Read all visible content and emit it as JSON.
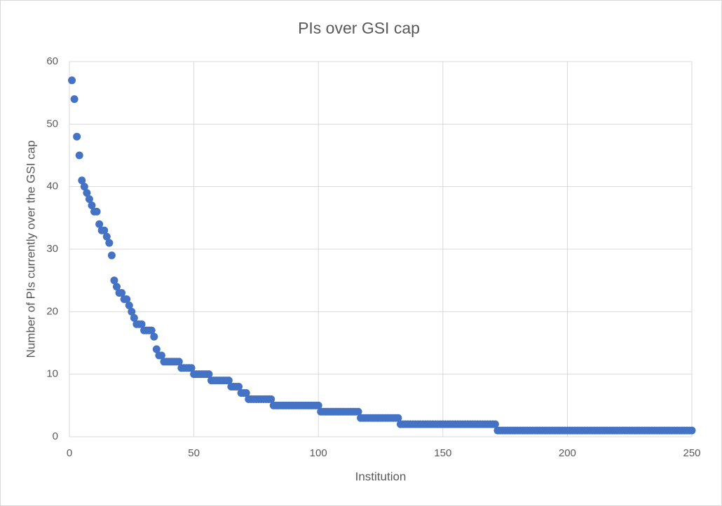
{
  "chart_data": {
    "type": "scatter",
    "title": "PIs over GSI cap",
    "x_label": "Institution",
    "y_label": "Number of PIs currently over the GSI cap",
    "xlim": [
      0,
      250
    ],
    "xticks": [
      0,
      50,
      100,
      150,
      200,
      250
    ],
    "ylim": [
      0,
      60
    ],
    "yticks": [
      0,
      10,
      20,
      30,
      40,
      50,
      60
    ],
    "grid": true,
    "series": [
      {
        "color": "#4472c4",
        "x": [
          1,
          2,
          3,
          4,
          5,
          6,
          7,
          8,
          9,
          10,
          11,
          12,
          13,
          14,
          15,
          16,
          17,
          18,
          19,
          20,
          21,
          22,
          23,
          24,
          25,
          26,
          27,
          28,
          29,
          30,
          31,
          32,
          33,
          34,
          35,
          36,
          37,
          38,
          39,
          40,
          41,
          42,
          43,
          44,
          45,
          46,
          47,
          48,
          49,
          50,
          51,
          52,
          53,
          54,
          55,
          56,
          57,
          58,
          59,
          60,
          61,
          62,
          63,
          64,
          65,
          66,
          67,
          68,
          69,
          70,
          71,
          72,
          73,
          74,
          75,
          76,
          77,
          78,
          79,
          80,
          81,
          82,
          83,
          84,
          85,
          86,
          87,
          88,
          89,
          90,
          91,
          92,
          93,
          94,
          95,
          96,
          97,
          98,
          99,
          100,
          101,
          102,
          103,
          104,
          105,
          106,
          107,
          108,
          109,
          110,
          111,
          112,
          113,
          114,
          115,
          116,
          117,
          118,
          119,
          120,
          121,
          122,
          123,
          124,
          125,
          126,
          127,
          128,
          129,
          130,
          131,
          132,
          133,
          134,
          135,
          136,
          137,
          138,
          139,
          140,
          141,
          142,
          143,
          144,
          145,
          146,
          147,
          148,
          149,
          150,
          151,
          152,
          153,
          154,
          155,
          156,
          157,
          158,
          159,
          160,
          161,
          162,
          163,
          164,
          165,
          166,
          167,
          168,
          169,
          170,
          171,
          172,
          173,
          174,
          175,
          176,
          177,
          178,
          179,
          180,
          181,
          182,
          183,
          184,
          185,
          186,
          187,
          188,
          189,
          190,
          191,
          192,
          193,
          194,
          195,
          196,
          197,
          198,
          199,
          200,
          201,
          202,
          203,
          204,
          205,
          206,
          207,
          208,
          209,
          210,
          211,
          212,
          213,
          214,
          215,
          216,
          217,
          218,
          219,
          220,
          221,
          222,
          223,
          224,
          225,
          226,
          227,
          228,
          229,
          230,
          231,
          232,
          233,
          234,
          235,
          236,
          237,
          238,
          239,
          240,
          241,
          242,
          243,
          244,
          245,
          246,
          247,
          248,
          249,
          250
        ],
        "values": [
          57,
          54,
          48,
          45,
          41,
          40,
          39,
          38,
          37,
          36,
          36,
          34,
          33,
          33,
          32,
          31,
          29,
          25,
          24,
          23,
          23,
          22,
          22,
          21,
          20,
          19,
          18,
          18,
          18,
          17,
          17,
          17,
          17,
          16,
          14,
          13,
          13,
          12,
          12,
          12,
          12,
          12,
          12,
          12,
          11,
          11,
          11,
          11,
          11,
          10,
          10,
          10,
          10,
          10,
          10,
          10,
          9,
          9,
          9,
          9,
          9,
          9,
          9,
          9,
          8,
          8,
          8,
          8,
          7,
          7,
          7,
          6,
          6,
          6,
          6,
          6,
          6,
          6,
          6,
          6,
          6,
          5,
          5,
          5,
          5,
          5,
          5,
          5,
          5,
          5,
          5,
          5,
          5,
          5,
          5,
          5,
          5,
          5,
          5,
          5,
          4,
          4,
          4,
          4,
          4,
          4,
          4,
          4,
          4,
          4,
          4,
          4,
          4,
          4,
          4,
          4,
          3,
          3,
          3,
          3,
          3,
          3,
          3,
          3,
          3,
          3,
          3,
          3,
          3,
          3,
          3,
          3,
          2,
          2,
          2,
          2,
          2,
          2,
          2,
          2,
          2,
          2,
          2,
          2,
          2,
          2,
          2,
          2,
          2,
          2,
          2,
          2,
          2,
          2,
          2,
          2,
          2,
          2,
          2,
          2,
          2,
          2,
          2,
          2,
          2,
          2,
          2,
          2,
          2,
          2,
          2,
          1,
          1,
          1,
          1,
          1,
          1,
          1,
          1,
          1,
          1,
          1,
          1,
          1,
          1,
          1,
          1,
          1,
          1,
          1,
          1,
          1,
          1,
          1,
          1,
          1,
          1,
          1,
          1,
          1,
          1,
          1,
          1,
          1,
          1,
          1,
          1,
          1,
          1,
          1,
          1,
          1,
          1,
          1,
          1,
          1,
          1,
          1,
          1,
          1,
          1,
          1,
          1,
          1,
          1,
          1,
          1,
          1,
          1,
          1,
          1,
          1,
          1,
          1,
          1,
          1,
          1,
          1,
          1,
          1,
          1,
          1,
          1,
          1,
          1,
          1,
          1,
          1,
          1,
          1
        ]
      }
    ]
  }
}
